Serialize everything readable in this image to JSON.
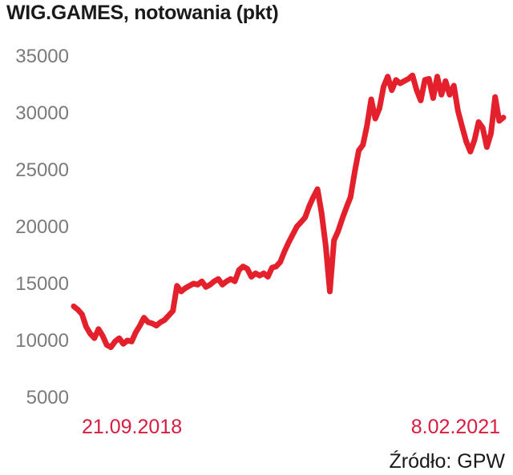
{
  "title": "WIG.GAMES, notowania (pkt)",
  "source": "Źródło: GPW",
  "colors": {
    "line": "#e3202b",
    "date_label": "#d81b3f",
    "tick": "#7a7a7a"
  },
  "chart_data": {
    "type": "line",
    "title": "WIG.GAMES, notowania (pkt)",
    "ylim": [
      5000,
      35000
    ],
    "yticks": [
      35000,
      30000,
      25000,
      20000,
      15000,
      10000,
      5000
    ],
    "x_labels": [
      "21.09.2018",
      "8.02.2021"
    ],
    "grid": false,
    "series": [
      {
        "values": [
          13000,
          12700,
          12300,
          11200,
          10600,
          10200,
          11000,
          10400,
          9600,
          9400,
          9900,
          10200,
          9700,
          10000,
          9900,
          10700,
          11300,
          12000,
          11600,
          11500,
          11300,
          11600,
          11800,
          12200,
          12600,
          14800,
          14300,
          14600,
          14800,
          15000,
          14900,
          15200,
          14700,
          14900,
          15200,
          15400,
          14900,
          15200,
          15400,
          15200,
          16200,
          16500,
          16300,
          15600,
          15900,
          15700,
          15900,
          15600,
          16400,
          16500,
          16900,
          17800,
          18600,
          19300,
          20000,
          20400,
          20800,
          21800,
          22600,
          23300,
          21200,
          18300,
          14300,
          18800,
          19600,
          20700,
          21700,
          22600,
          24800,
          26700,
          27200,
          28900,
          31200,
          29500,
          30400,
          32300,
          33200,
          32000,
          32900,
          32600,
          32800,
          33000,
          33300,
          32000,
          31100,
          32900,
          33000,
          31300,
          33200,
          31600,
          32800,
          31600,
          32400,
          30200,
          28800,
          27500,
          26600,
          27600,
          29200,
          28700,
          27000,
          28200,
          31400,
          29300,
          29600
        ]
      }
    ]
  }
}
